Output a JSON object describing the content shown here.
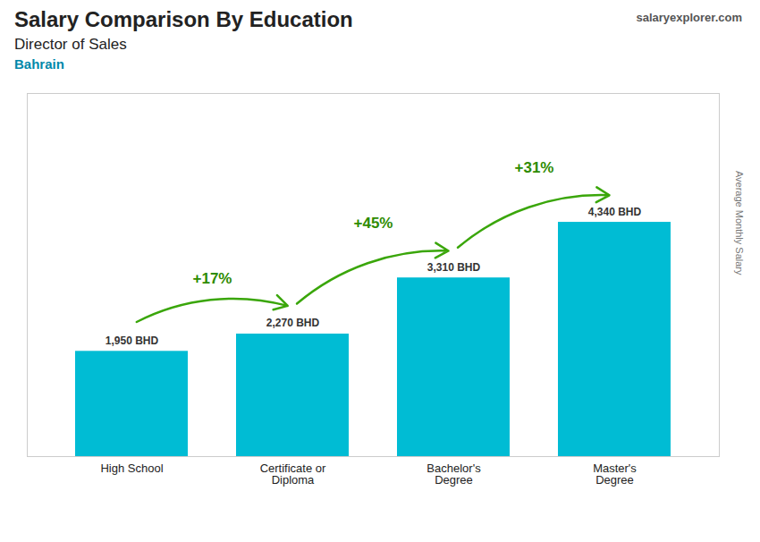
{
  "chart_data": {
    "type": "bar",
    "title": "Salary Comparison By Education",
    "subtitle": "Director of Sales",
    "annotations": [
      "Bahrain",
      "salaryexplorer.com"
    ],
    "ylabel": "Average Monthly Salary",
    "categories": [
      "High School",
      "Certificate or\nDiploma",
      "Bachelor's\nDegree",
      "Master's\nDegree"
    ],
    "values": [
      1950,
      2270,
      3310,
      4340
    ],
    "value_labels": [
      "1,950 BHD",
      "2,270 BHD",
      "3,310 BHD",
      "4,340 BHD"
    ],
    "data_labels": true,
    "arrow_labels": [
      "+17%",
      "+45%",
      "+31%"
    ],
    "color": "#00bcd4",
    "ylim": [
      0,
      6727
    ],
    "yticks": [],
    "tick_labels": "x",
    "grid": false
  }
}
